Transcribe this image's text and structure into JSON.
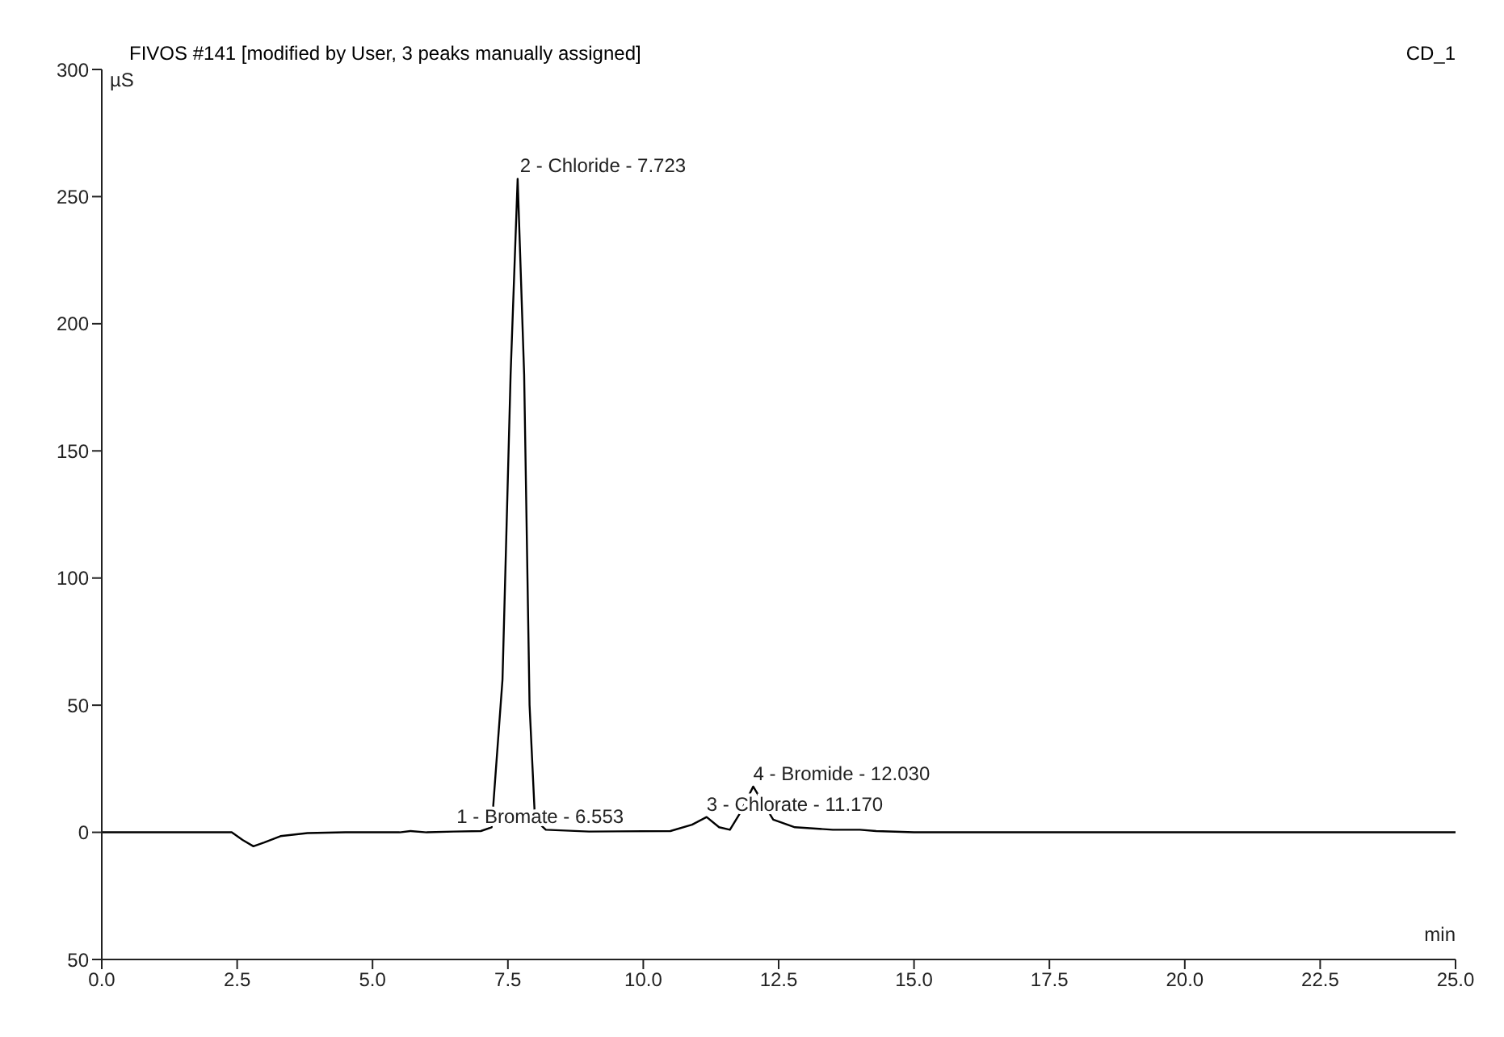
{
  "chart_data": {
    "type": "line",
    "title": "FIVOS #141 [modified by User, 3 peaks manually assigned]",
    "subtitle": "CD_1",
    "xlabel": "min",
    "ylabel": "µS",
    "x": [
      0,
      2.4,
      2.6,
      2.8,
      3.0,
      3.3,
      3.8,
      4.5,
      5.5,
      5.7,
      6.0,
      6.5,
      7.0,
      7.2,
      7.4,
      7.55,
      7.68,
      7.8,
      7.9,
      8.0,
      8.2,
      9.0,
      10.5,
      10.9,
      11.17,
      11.4,
      11.6,
      11.8,
      12.03,
      12.2,
      12.4,
      12.8,
      13.5,
      14.0,
      14.3,
      15.0,
      25.0
    ],
    "series": [
      {
        "color": "#000000",
        "values": [
          0,
          0,
          -3,
          -5.5,
          -4,
          -1.5,
          -0.3,
          0,
          0,
          0.5,
          0,
          0.3,
          0.5,
          2,
          60,
          180,
          257,
          180,
          50,
          5,
          1,
          0.3,
          0.5,
          3,
          6,
          2,
          1,
          8,
          18,
          12,
          5,
          2,
          1,
          1,
          0.5,
          0,
          0
        ]
      }
    ],
    "xlim": [
      0,
      25
    ],
    "xticks": [
      {
        "value": 0,
        "label": "0.0"
      },
      {
        "value": 2.5,
        "label": "2.5"
      },
      {
        "value": 5,
        "label": "5.0"
      },
      {
        "value": 7.5,
        "label": "7.5"
      },
      {
        "value": 10,
        "label": "10.0"
      },
      {
        "value": 12.5,
        "label": "12.5"
      },
      {
        "value": 15,
        "label": "15.0"
      },
      {
        "value": 17.5,
        "label": "17.5"
      },
      {
        "value": 20,
        "label": "20.0"
      },
      {
        "value": 22.5,
        "label": "22.5"
      },
      {
        "value": 25,
        "label": "25.0"
      }
    ],
    "ylim": [
      -50,
      300
    ],
    "yticks": [
      {
        "value": -50,
        "label": "50"
      },
      0,
      50,
      100,
      150,
      200,
      250,
      300
    ],
    "annotations": [
      {
        "text": "1 - Bromate - 6.553",
        "x": 6.553,
        "y": 1
      },
      {
        "text": "2 - Chloride - 7.723",
        "x": 7.723,
        "y": 257
      },
      {
        "text": "3 - Chlorate - 11.170",
        "x": 11.17,
        "y": 6
      },
      {
        "text": "4 - Bromide - 12.030",
        "x": 12.03,
        "y": 18
      }
    ],
    "grid": false,
    "legend": false,
    "marker": "none",
    "line_style": "solid"
  }
}
